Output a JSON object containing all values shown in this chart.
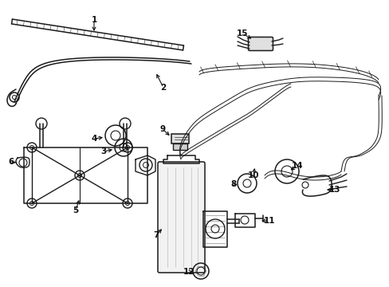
{
  "bg_color": "#ffffff",
  "line_color": "#1a1a1a",
  "label_color": "#111111",
  "figsize": [
    4.89,
    3.6
  ],
  "dpi": 100,
  "lw_main": 1.1,
  "lw_thin": 0.7,
  "fontsize": 7.5
}
